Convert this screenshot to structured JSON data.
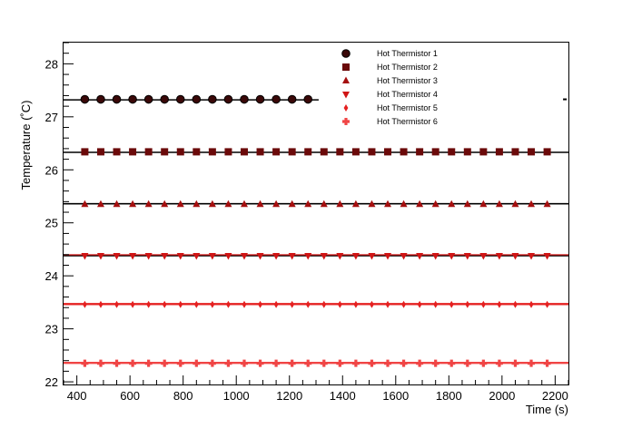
{
  "chart_data": {
    "type": "scatter",
    "xlabel": "Time (s)",
    "ylabel": "Temperature (˚C)",
    "xlim": [
      350,
      2250
    ],
    "ylim": [
      21.95,
      28.4
    ],
    "xticks": [
      400,
      600,
      800,
      1000,
      1200,
      1400,
      1600,
      1800,
      2000,
      2200
    ],
    "yticks": [
      22,
      23,
      24,
      25,
      26,
      27,
      28
    ],
    "grid": false,
    "legend_position": "top-right",
    "series": [
      {
        "name": "Hot Thermistor 1",
        "marker": "circle",
        "color": "#3a0808",
        "y": 27.33,
        "x_start": 430,
        "x_end": 1270,
        "x_step": 60,
        "fit": 27.32,
        "fit_range": [
          350,
          1310
        ]
      },
      {
        "name": "Hot Thermistor 2",
        "marker": "square",
        "color": "#6b0a0a",
        "y": 26.34,
        "x_start": 430,
        "x_end": 2190,
        "x_step": 60,
        "fit": 26.33,
        "fit_range": [
          350,
          2250
        ]
      },
      {
        "name": "Hot Thermistor 3",
        "marker": "triangle-up",
        "color": "#a50f0f",
        "y": 25.35,
        "x_start": 430,
        "x_end": 2190,
        "x_step": 60,
        "fit": 25.36,
        "fit_range": [
          350,
          2250
        ]
      },
      {
        "name": "Hot Thermistor 4",
        "marker": "triangle-down",
        "color": "#d01515",
        "y": 24.38,
        "x_start": 430,
        "x_end": 2190,
        "x_step": 60,
        "fit": 24.38,
        "fit_range": [
          350,
          2250
        ]
      },
      {
        "name": "Hot Thermistor 5",
        "marker": "diamond",
        "color": "#e52020",
        "y": 23.46,
        "x_start": 430,
        "x_end": 2190,
        "x_step": 60,
        "fit": 23.46,
        "fit_range": [
          350,
          2250
        ]
      },
      {
        "name": "Hot Thermistor 6",
        "marker": "cross",
        "color": "#f04545",
        "y": 22.35,
        "x_start": 430,
        "x_end": 2190,
        "x_step": 60,
        "fit": 22.35,
        "fit_range": [
          350,
          2250
        ]
      }
    ],
    "fit_line_color": "#000000",
    "stray_mark": {
      "x": 2240,
      "y": 27.33
    }
  }
}
